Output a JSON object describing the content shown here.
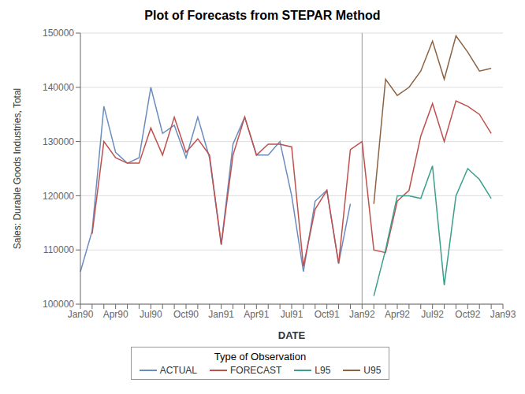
{
  "chart_data": {
    "type": "line",
    "title": "Plot of Forecasts from STEPAR Method",
    "xlabel": "DATE",
    "ylabel": "Sales: Durable Goods Industries, Total",
    "categories": [
      "Jan90",
      null,
      null,
      "Apr90",
      null,
      null,
      "Jul90",
      null,
      null,
      "Oct90",
      null,
      null,
      "Jan91",
      null,
      null,
      "Apr91",
      null,
      null,
      "Jul91",
      null,
      null,
      "Oct91",
      null,
      null,
      "Jan92",
      null,
      null,
      "Apr92",
      null,
      null,
      "Jul92",
      null,
      null,
      "Oct92",
      null,
      null,
      "Jan93"
    ],
    "series": [
      {
        "name": "ACTUAL",
        "color": "#6b8cbe",
        "values": [
          106000,
          113500,
          136500,
          128000,
          126000,
          127000,
          140000,
          131500,
          133000,
          127000,
          134500,
          127000,
          111000,
          129500,
          134500,
          127500,
          127500,
          130000,
          120000,
          106000,
          119000,
          121000,
          107500,
          118500,
          null,
          null,
          null,
          null,
          null,
          null,
          null,
          null,
          null,
          null,
          null,
          null,
          null
        ]
      },
      {
        "name": "FORECAST",
        "color": "#c0504d",
        "values": [
          null,
          113000,
          130000,
          127000,
          126000,
          126000,
          132500,
          127500,
          134500,
          128000,
          130500,
          127500,
          111000,
          127500,
          134500,
          127500,
          129500,
          129500,
          129000,
          107000,
          117500,
          121000,
          107500,
          128500,
          130000,
          110000,
          109500,
          119000,
          121000,
          131000,
          137000,
          130000,
          137500,
          136500,
          135000,
          131500,
          null
        ]
      },
      {
        "name": "L95",
        "color": "#3b9e8e",
        "values": [
          null,
          null,
          null,
          null,
          null,
          null,
          null,
          null,
          null,
          null,
          null,
          null,
          null,
          null,
          null,
          null,
          null,
          null,
          null,
          null,
          null,
          null,
          null,
          null,
          null,
          101500,
          110000,
          120000,
          120000,
          119500,
          125500,
          103500,
          120000,
          125000,
          123000,
          119500,
          null
        ]
      },
      {
        "name": "U95",
        "color": "#8b6343",
        "values": [
          null,
          null,
          null,
          null,
          null,
          null,
          null,
          null,
          null,
          null,
          null,
          null,
          null,
          null,
          null,
          null,
          null,
          null,
          null,
          null,
          null,
          null,
          null,
          null,
          null,
          118500,
          141500,
          138500,
          140000,
          143000,
          148500,
          141500,
          149500,
          146500,
          143000,
          143500,
          null
        ]
      }
    ],
    "ylim": [
      100000,
      150000
    ],
    "yticks": [
      100000,
      110000,
      120000,
      130000,
      140000,
      150000
    ],
    "grid": "y",
    "legend": "bottom",
    "legend_title": "Type of Observation",
    "vline": {
      "category": "Jan92",
      "color": "#999999"
    }
  }
}
